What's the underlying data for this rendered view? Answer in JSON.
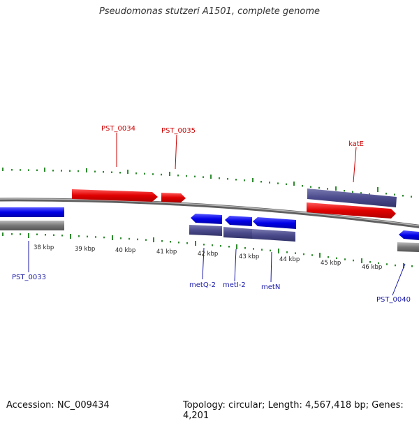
{
  "title": "Pseudomonas stutzeri A1501, complete genome",
  "footer": {
    "accession": "Accession: NC_009434",
    "summary": "Topology: circular; Length: 4,567,418 bp; Genes: 4,201"
  },
  "scale_labels": [
    "38 kbp",
    "39 kbp",
    "40 kbp",
    "41 kbp",
    "42 kbp",
    "43 kbp",
    "44 kbp",
    "45 kbp",
    "46 kbp"
  ],
  "gene_labels": {
    "pst0034": "PST_0034",
    "pst0035": "PST_0035",
    "kate": "katE",
    "pst0033": "PST_0033",
    "metq2": "metQ-2",
    "meti2": "metI-2",
    "metn": "metN",
    "pst0040": "PST_0040"
  },
  "colors": {
    "forward_cds": "#e41a1c",
    "reverse_cds": "#1515e0",
    "gene_bar": "#4a4a8c",
    "tick": "#2e8b2e",
    "backbone": "#8a8a8a"
  }
}
